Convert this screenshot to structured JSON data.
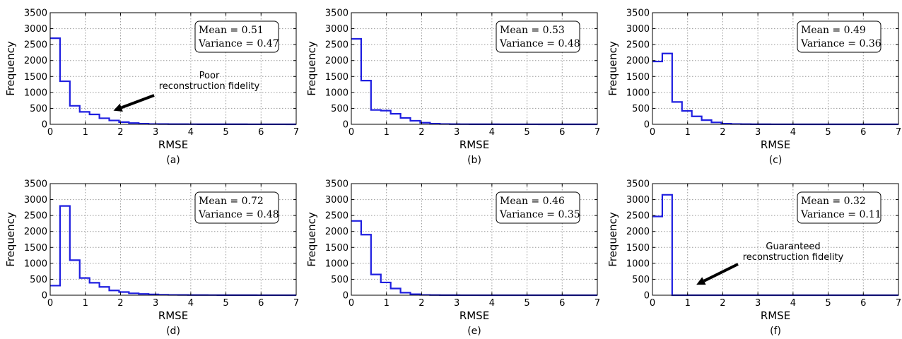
{
  "chart_data": [
    {
      "type": "histogram",
      "panel_label": "(a)",
      "xlabel": "RMSE",
      "ylabel": "Frequency",
      "xlim": [
        0,
        7
      ],
      "ylim": [
        0,
        3500
      ],
      "x_ticks": [
        "0",
        "1",
        "2",
        "3",
        "4",
        "5",
        "6",
        "7"
      ],
      "y_ticks": [
        "0",
        "500",
        "1000",
        "1500",
        "2000",
        "2500",
        "3000",
        "3500"
      ],
      "grid": true,
      "bin_width": 0.28,
      "values": [
        2700,
        1350,
        580,
        390,
        310,
        190,
        120,
        70,
        40,
        20,
        10,
        8,
        6,
        5,
        4,
        3,
        3,
        2,
        2,
        2,
        1,
        1,
        1,
        1,
        0
      ],
      "stats": [
        "Mean = 0.51",
        "Variance = 0.47"
      ],
      "stats_position": "top-right",
      "annotation": {
        "lines": [
          "Poor",
          "reconstruction fidelity"
        ],
        "arrow_target": [
          1.8,
          430
        ]
      }
    },
    {
      "type": "histogram",
      "panel_label": "(b)",
      "xlabel": "RMSE",
      "ylabel": "Frequency",
      "xlim": [
        0,
        7
      ],
      "ylim": [
        0,
        3500
      ],
      "x_ticks": [
        "0",
        "1",
        "2",
        "3",
        "4",
        "5",
        "6",
        "7"
      ],
      "y_ticks": [
        "0",
        "500",
        "1000",
        "1500",
        "2000",
        "2500",
        "3000",
        "3500"
      ],
      "grid": true,
      "bin_width": 0.28,
      "values": [
        2680,
        1370,
        450,
        430,
        330,
        200,
        110,
        50,
        20,
        10,
        6,
        4,
        3,
        2,
        2,
        1,
        1,
        1,
        1,
        0,
        0,
        0,
        0,
        0,
        0
      ],
      "stats": [
        "Mean = 0.53",
        "Variance = 0.48"
      ],
      "stats_position": "top-right"
    },
    {
      "type": "histogram",
      "panel_label": "(c)",
      "xlabel": "RMSE",
      "ylabel": "Frequency",
      "xlim": [
        0,
        7
      ],
      "ylim": [
        0,
        3500
      ],
      "x_ticks": [
        "0",
        "1",
        "2",
        "3",
        "4",
        "5",
        "6",
        "7"
      ],
      "y_ticks": [
        "0",
        "500",
        "1000",
        "1500",
        "2000",
        "2500",
        "3000",
        "3500"
      ],
      "grid": true,
      "bin_width": 0.28,
      "values": [
        1970,
        2220,
        700,
        420,
        250,
        130,
        60,
        20,
        10,
        5,
        3,
        2,
        1,
        1,
        1,
        0,
        0,
        0,
        0,
        0,
        0,
        0,
        0,
        0,
        0
      ],
      "stats": [
        "Mean = 0.49",
        "Variance = 0.36"
      ],
      "stats_position": "top-right"
    },
    {
      "type": "histogram",
      "panel_label": "(d)",
      "xlabel": "RMSE",
      "ylabel": "Frequency",
      "xlim": [
        0,
        7
      ],
      "ylim": [
        0,
        3500
      ],
      "x_ticks": [
        "0",
        "1",
        "2",
        "3",
        "4",
        "5",
        "6",
        "7"
      ],
      "y_ticks": [
        "0",
        "500",
        "1000",
        "1500",
        "2000",
        "2500",
        "3000",
        "3500"
      ],
      "grid": true,
      "bin_width": 0.28,
      "values": [
        300,
        2800,
        1100,
        540,
        390,
        260,
        150,
        100,
        60,
        40,
        25,
        15,
        10,
        8,
        6,
        5,
        4,
        3,
        3,
        2,
        2,
        1,
        1,
        1,
        0
      ],
      "stats": [
        "Mean = 0.72",
        "Variance = 0.48"
      ],
      "stats_position": "top-right"
    },
    {
      "type": "histogram",
      "panel_label": "(e)",
      "xlabel": "RMSE",
      "ylabel": "Frequency",
      "xlim": [
        0,
        7
      ],
      "ylim": [
        0,
        3500
      ],
      "x_ticks": [
        "0",
        "1",
        "2",
        "3",
        "4",
        "5",
        "6",
        "7"
      ],
      "y_ticks": [
        "0",
        "500",
        "1000",
        "1500",
        "2000",
        "2500",
        "3000",
        "3500"
      ],
      "grid": true,
      "bin_width": 0.28,
      "values": [
        2330,
        1900,
        650,
        400,
        210,
        80,
        30,
        10,
        5,
        3,
        2,
        1,
        1,
        0,
        0,
        0,
        0,
        0,
        0,
        0,
        0,
        0,
        0,
        0,
        0
      ],
      "stats": [
        "Mean = 0.46",
        "Variance = 0.35"
      ],
      "stats_position": "top-right"
    },
    {
      "type": "histogram",
      "panel_label": "(f)",
      "xlabel": "RMSE",
      "ylabel": "Frequency",
      "xlim": [
        0,
        7
      ],
      "ylim": [
        0,
        3500
      ],
      "x_ticks": [
        "0",
        "1",
        "2",
        "3",
        "4",
        "5",
        "6",
        "7"
      ],
      "y_ticks": [
        "0",
        "500",
        "1000",
        "1500",
        "2000",
        "2500",
        "3000",
        "3500"
      ],
      "grid": true,
      "bin_width": 0.28,
      "values": [
        2470,
        3150,
        0,
        0,
        0,
        0,
        0,
        0,
        0,
        0,
        0,
        0,
        0,
        0,
        0,
        0,
        0,
        0,
        0,
        0,
        0,
        0,
        0,
        0,
        0
      ],
      "stats": [
        "Mean = 0.32",
        "Variance = 0.11"
      ],
      "stats_position": "top-right",
      "annotation": {
        "lines": [
          "Guaranteed",
          "reconstruction fidelity"
        ],
        "arrow_target": [
          1.25,
          330
        ]
      }
    }
  ],
  "colors": {
    "line": "#1f1fe0",
    "axis": "#000000",
    "grid": "#9a9a9a",
    "background": "#ffffff"
  }
}
